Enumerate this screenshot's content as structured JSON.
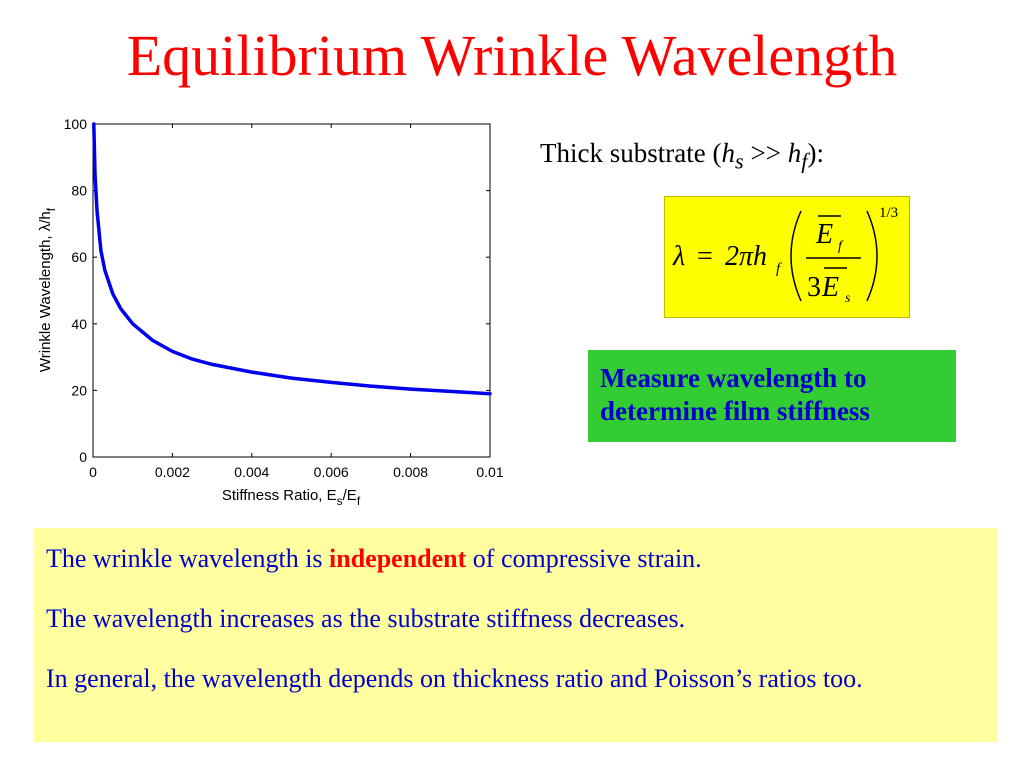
{
  "slide": {
    "title": "Equilibrium Wrinkle Wavelength"
  },
  "right": {
    "thick_prefix": "Thick substrate (",
    "thick_h1": "h",
    "thick_sub1": "s",
    "thick_mid": " >> ",
    "thick_h2": "h",
    "thick_sub2": "f",
    "thick_suffix": "):",
    "formula": {
      "lambda": "λ",
      "equals": "=",
      "two_pi": "2πh",
      "h_sub": "f",
      "num_e": "E",
      "num_sub": "f",
      "den_three": "3",
      "den_e": "E",
      "den_sub": "s",
      "exponent": "1/3"
    },
    "green_line1": "Measure wavelength to",
    "green_line2": "determine film stiffness"
  },
  "bottom": {
    "line1_before": "The wrinkle wavelength is ",
    "line1_highlight": "independent",
    "line1_after": " of compressive strain.",
    "line2": "The wavelength increases as the substrate stiffness decreases.",
    "line3": "In general, the wavelength depends on thickness ratio and Poisson’s ratios too."
  },
  "colors": {
    "title": "#ff0000",
    "body_text": "#0000cc",
    "highlight": "#ff0000",
    "curve": "#0000ee",
    "formula_bg": "#ffff00",
    "green_bg": "#33cc33",
    "bottom_bg": "#ffffa0"
  },
  "chart_data": {
    "type": "line",
    "xlabel_main": "Stiffness Ratio, E",
    "xlabel_sub1": "s",
    "xlabel_mid": "/E",
    "xlabel_sub2": "f",
    "ylabel_main": "Wrinkle Wavelength,  λ/h",
    "ylabel_sub": "f",
    "xlim": [
      0,
      0.01
    ],
    "ylim": [
      0,
      100
    ],
    "xticks": [
      "0",
      "0.002",
      "0.004",
      "0.006",
      "0.008",
      "0.01"
    ],
    "yticks": [
      "0",
      "20",
      "40",
      "60",
      "80",
      "100"
    ],
    "grid": false,
    "legend": "none",
    "series": [
      {
        "x": [
          2e-05,
          5e-05,
          0.0001,
          0.0002,
          0.0003,
          0.0005,
          0.0007,
          0.001,
          0.0015,
          0.002,
          0.0025,
          0.003,
          0.004,
          0.005,
          0.006,
          0.007,
          0.008,
          0.009,
          0.01
        ],
        "y": [
          100,
          85,
          74,
          62,
          56,
          49,
          44.5,
          40,
          35,
          31.7,
          29.4,
          27.8,
          25.5,
          23.7,
          22.4,
          21.3,
          20.4,
          19.7,
          19.0
        ]
      }
    ]
  }
}
